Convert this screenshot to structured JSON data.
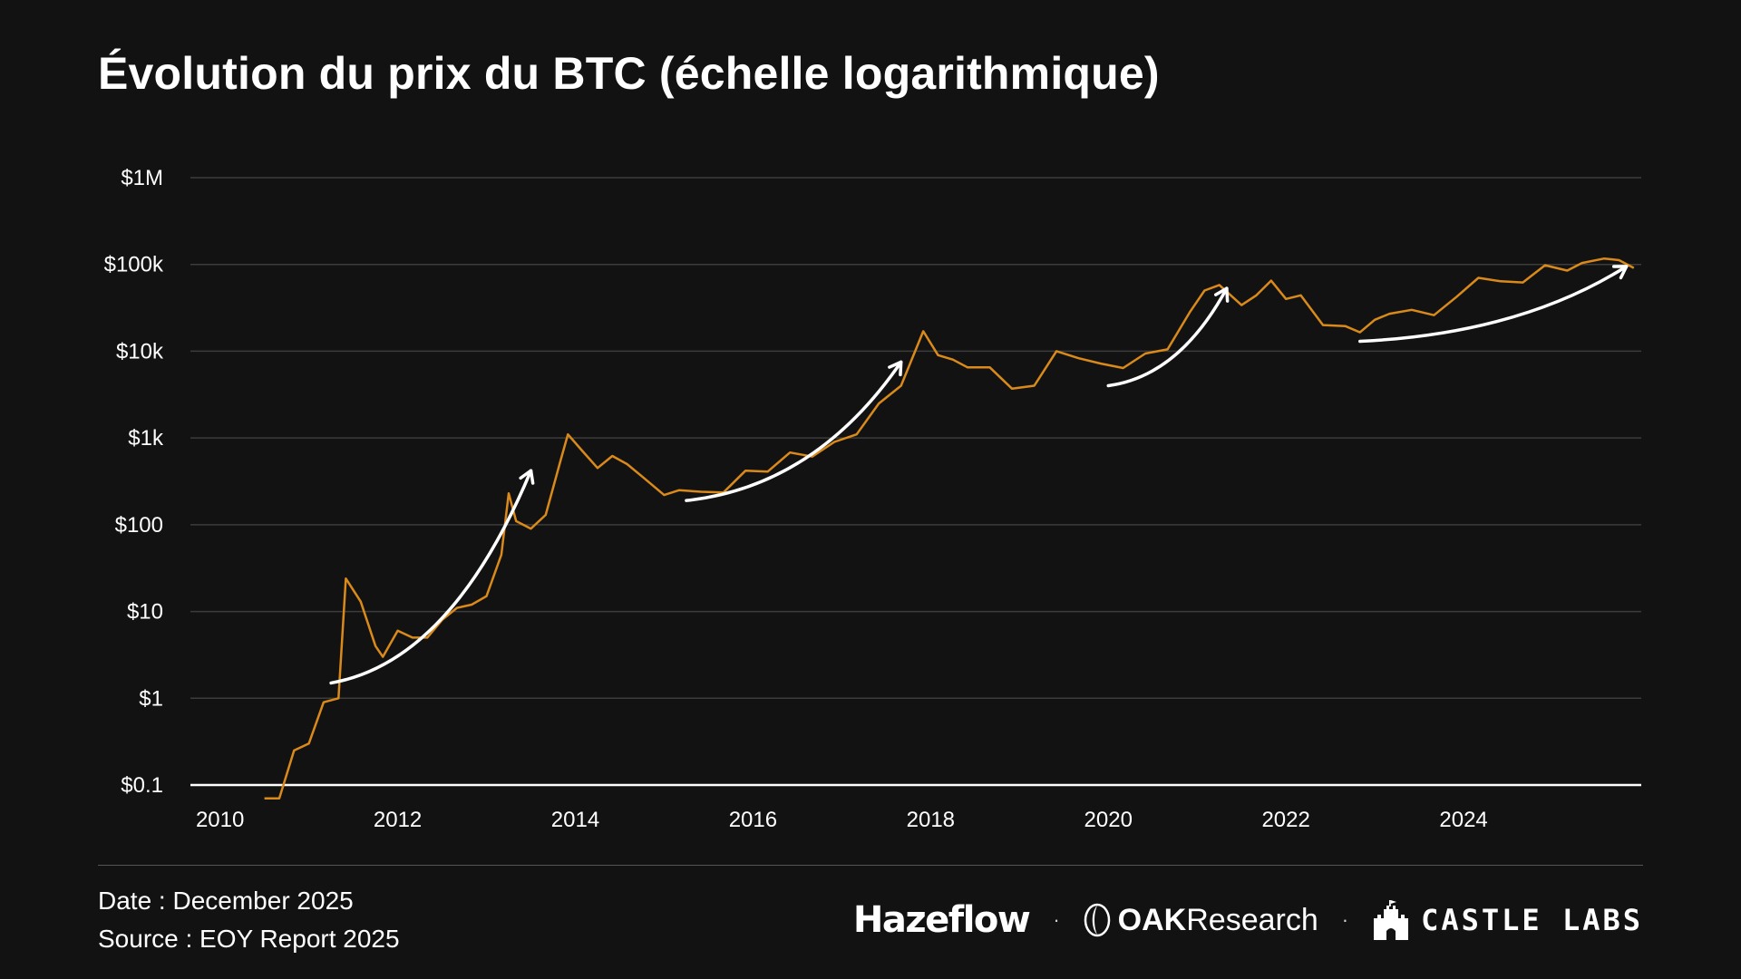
{
  "title": "Évolution du prix du BTC (échelle logarithmique)",
  "colors": {
    "background": "#121212",
    "series": "#d98a1a",
    "arrows": "#ffffff",
    "grid": "#3c3c3c",
    "baseline": "#ffffff"
  },
  "chart_data": {
    "type": "line",
    "title": "Évolution du prix du BTC (échelle logarithmique)",
    "xlabel": "",
    "ylabel": "",
    "yscale": "log",
    "ylim": [
      0.1,
      1000000
    ],
    "xlim": [
      "2009-09",
      "2026-01"
    ],
    "yticks": [
      {
        "value": 0.1,
        "label": "$0.1"
      },
      {
        "value": 1,
        "label": "$1"
      },
      {
        "value": 10,
        "label": "$10"
      },
      {
        "value": 100,
        "label": "$100"
      },
      {
        "value": 1000,
        "label": "$1k"
      },
      {
        "value": 10000,
        "label": "$10k"
      },
      {
        "value": 100000,
        "label": "$100k"
      },
      {
        "value": 1000000,
        "label": "$1M"
      }
    ],
    "xticks": [
      "2010",
      "2012",
      "2014",
      "2016",
      "2018",
      "2020",
      "2022",
      "2024"
    ],
    "grid": true,
    "series": [
      {
        "x": [
          "2010-07",
          "2010-09",
          "2010-11",
          "2011-01",
          "2011-03",
          "2011-05",
          "2011-06",
          "2011-08",
          "2011-10",
          "2011-11",
          "2012-01",
          "2012-03",
          "2012-05",
          "2012-07",
          "2012-09",
          "2012-11",
          "2013-01",
          "2013-03",
          "2013-04",
          "2013-05",
          "2013-07",
          "2013-09",
          "2013-11",
          "2013-12",
          "2014-02",
          "2014-04",
          "2014-06",
          "2014-08",
          "2014-10",
          "2015-01",
          "2015-03",
          "2015-06",
          "2015-09",
          "2015-12",
          "2016-03",
          "2016-06",
          "2016-09",
          "2016-12",
          "2017-03",
          "2017-06",
          "2017-09",
          "2017-12",
          "2018-02",
          "2018-04",
          "2018-06",
          "2018-09",
          "2018-12",
          "2019-03",
          "2019-06",
          "2019-09",
          "2019-12",
          "2020-03",
          "2020-06",
          "2020-09",
          "2020-12",
          "2021-02",
          "2021-04",
          "2021-07",
          "2021-09",
          "2021-11",
          "2022-01",
          "2022-03",
          "2022-06",
          "2022-09",
          "2022-11",
          "2023-01",
          "2023-03",
          "2023-06",
          "2023-09",
          "2023-12",
          "2024-03",
          "2024-06",
          "2024-09",
          "2024-12",
          "2025-03",
          "2025-05",
          "2025-08",
          "2025-10",
          "2025-12"
        ],
        "values": [
          0.07,
          0.07,
          0.25,
          0.3,
          0.9,
          1.0,
          24,
          13,
          4,
          3,
          6,
          5,
          5,
          8,
          11,
          12,
          15,
          45,
          230,
          110,
          90,
          130,
          550,
          1100,
          700,
          450,
          620,
          500,
          360,
          220,
          250,
          240,
          235,
          420,
          410,
          680,
          610,
          900,
          1100,
          2500,
          4000,
          17000,
          9000,
          8000,
          6500,
          6500,
          3700,
          4000,
          10000,
          8300,
          7200,
          6400,
          9400,
          10500,
          28000,
          50000,
          58000,
          34000,
          44000,
          65000,
          40000,
          44000,
          20000,
          19500,
          16500,
          23000,
          27000,
          30000,
          26000,
          42000,
          70000,
          64000,
          62000,
          98000,
          85000,
          104000,
          117000,
          112000,
          91000
        ]
      }
    ],
    "annotations": [
      {
        "type": "arrow",
        "from": {
          "x": "2011-04",
          "y": 1.5
        },
        "to": {
          "x": "2013-07",
          "y": 420
        }
      },
      {
        "type": "arrow",
        "from": {
          "x": "2015-04",
          "y": 190
        },
        "to": {
          "x": "2017-09",
          "y": 7500
        }
      },
      {
        "type": "arrow",
        "from": {
          "x": "2020-01",
          "y": 4000
        },
        "to": {
          "x": "2021-05",
          "y": 53000
        }
      },
      {
        "type": "arrow",
        "from": {
          "x": "2022-11",
          "y": 13000
        },
        "to": {
          "x": "2025-11",
          "y": 95000
        }
      }
    ]
  },
  "footer": {
    "date": "Date : December 2025",
    "source": "Source : EOY Report 2025",
    "logos": {
      "hazeflow": "Hazeflow",
      "oak_bold": "OAK",
      "oak_rest": "Research",
      "castle": "CASTLE LABS",
      "separator": "·"
    }
  }
}
